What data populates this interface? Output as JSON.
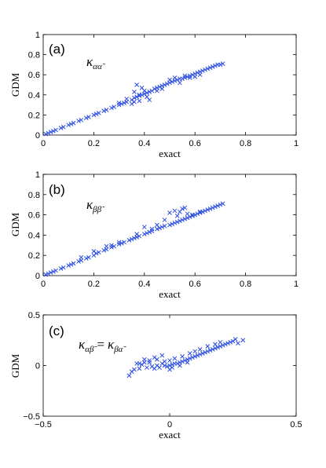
{
  "chart_data": [
    {
      "type": "scatter",
      "panel_label": "(a)",
      "annotation": {
        "main": "κ",
        "subscript": "αα̃"
      },
      "xlabel": "exact",
      "ylabel": "GDM",
      "xlim": [
        0,
        1
      ],
      "ylim": [
        0,
        1
      ],
      "xticks": [
        "0",
        "0.2",
        "0.4",
        "0.6",
        "0.8",
        "1"
      ],
      "yticks": [
        "0",
        "0.2",
        "0.4",
        "0.6",
        "0.8",
        "1"
      ],
      "xtick_values": [
        0,
        0.2,
        0.4,
        0.6,
        0.8,
        1
      ],
      "ytick_values": [
        0,
        0.2,
        0.4,
        0.6,
        0.8,
        1
      ],
      "marker": "x",
      "color": "#2b4de0",
      "points": [
        [
          0.01,
          0.01
        ],
        [
          0.02,
          0.02
        ],
        [
          0.03,
          0.03
        ],
        [
          0.04,
          0.04
        ],
        [
          0.05,
          0.05
        ],
        [
          0.07,
          0.07
        ],
        [
          0.08,
          0.08
        ],
        [
          0.1,
          0.1
        ],
        [
          0.11,
          0.11
        ],
        [
          0.12,
          0.12
        ],
        [
          0.14,
          0.14
        ],
        [
          0.15,
          0.15
        ],
        [
          0.17,
          0.17
        ],
        [
          0.18,
          0.18
        ],
        [
          0.2,
          0.2
        ],
        [
          0.21,
          0.21
        ],
        [
          0.22,
          0.22
        ],
        [
          0.24,
          0.24
        ],
        [
          0.25,
          0.25
        ],
        [
          0.27,
          0.27
        ],
        [
          0.28,
          0.28
        ],
        [
          0.3,
          0.3
        ],
        [
          0.31,
          0.31
        ],
        [
          0.32,
          0.32
        ],
        [
          0.33,
          0.33
        ],
        [
          0.35,
          0.35
        ],
        [
          0.36,
          0.37
        ],
        [
          0.37,
          0.38
        ],
        [
          0.38,
          0.39
        ],
        [
          0.39,
          0.4
        ],
        [
          0.4,
          0.41
        ],
        [
          0.41,
          0.42
        ],
        [
          0.42,
          0.43
        ],
        [
          0.43,
          0.44
        ],
        [
          0.44,
          0.46
        ],
        [
          0.45,
          0.47
        ],
        [
          0.46,
          0.48
        ],
        [
          0.47,
          0.49
        ],
        [
          0.48,
          0.5
        ],
        [
          0.49,
          0.51
        ],
        [
          0.5,
          0.52
        ],
        [
          0.51,
          0.53
        ],
        [
          0.52,
          0.54
        ],
        [
          0.53,
          0.55
        ],
        [
          0.54,
          0.56
        ],
        [
          0.55,
          0.56
        ],
        [
          0.56,
          0.57
        ],
        [
          0.57,
          0.58
        ],
        [
          0.58,
          0.59
        ],
        [
          0.59,
          0.6
        ],
        [
          0.6,
          0.61
        ],
        [
          0.61,
          0.62
        ],
        [
          0.62,
          0.63
        ],
        [
          0.63,
          0.64
        ],
        [
          0.64,
          0.65
        ],
        [
          0.65,
          0.66
        ],
        [
          0.66,
          0.67
        ],
        [
          0.67,
          0.68
        ],
        [
          0.68,
          0.69
        ],
        [
          0.69,
          0.7
        ],
        [
          0.7,
          0.7
        ],
        [
          0.71,
          0.71
        ],
        [
          0.36,
          0.43
        ],
        [
          0.37,
          0.5
        ],
        [
          0.38,
          0.4
        ],
        [
          0.39,
          0.47
        ],
        [
          0.4,
          0.44
        ],
        [
          0.41,
          0.38
        ],
        [
          0.42,
          0.35
        ],
        [
          0.35,
          0.31
        ],
        [
          0.3,
          0.32
        ],
        [
          0.33,
          0.36
        ],
        [
          0.45,
          0.44
        ],
        [
          0.47,
          0.46
        ],
        [
          0.5,
          0.55
        ],
        [
          0.52,
          0.57
        ],
        [
          0.54,
          0.52
        ],
        [
          0.56,
          0.59
        ],
        [
          0.58,
          0.57
        ],
        [
          0.6,
          0.58
        ],
        [
          0.62,
          0.6
        ],
        [
          0.38,
          0.34
        ],
        [
          0.36,
          0.33
        ]
      ]
    },
    {
      "type": "scatter",
      "panel_label": "(b)",
      "annotation": {
        "main": "κ",
        "subscript": "ββ̃"
      },
      "xlabel": "exact",
      "ylabel": "GDM",
      "xlim": [
        0,
        1
      ],
      "ylim": [
        0,
        1
      ],
      "xticks": [
        "0",
        "0.2",
        "0.4",
        "0.6",
        "0.8",
        "1"
      ],
      "yticks": [
        "0",
        "0.2",
        "0.4",
        "0.6",
        "0.8",
        "1"
      ],
      "xtick_values": [
        0,
        0.2,
        0.4,
        0.6,
        0.8,
        1
      ],
      "ytick_values": [
        0,
        0.2,
        0.4,
        0.6,
        0.8,
        1
      ],
      "marker": "x",
      "color": "#2b4de0",
      "points": [
        [
          0.01,
          0.01
        ],
        [
          0.02,
          0.02
        ],
        [
          0.03,
          0.03
        ],
        [
          0.04,
          0.04
        ],
        [
          0.05,
          0.05
        ],
        [
          0.07,
          0.07
        ],
        [
          0.08,
          0.08
        ],
        [
          0.1,
          0.1
        ],
        [
          0.11,
          0.11
        ],
        [
          0.12,
          0.12
        ],
        [
          0.14,
          0.14
        ],
        [
          0.15,
          0.15
        ],
        [
          0.17,
          0.17
        ],
        [
          0.18,
          0.18
        ],
        [
          0.2,
          0.2
        ],
        [
          0.21,
          0.22
        ],
        [
          0.22,
          0.23
        ],
        [
          0.24,
          0.25
        ],
        [
          0.25,
          0.26
        ],
        [
          0.27,
          0.28
        ],
        [
          0.28,
          0.29
        ],
        [
          0.3,
          0.31
        ],
        [
          0.31,
          0.32
        ],
        [
          0.32,
          0.33
        ],
        [
          0.34,
          0.35
        ],
        [
          0.35,
          0.36
        ],
        [
          0.36,
          0.37
        ],
        [
          0.37,
          0.38
        ],
        [
          0.38,
          0.39
        ],
        [
          0.4,
          0.41
        ],
        [
          0.41,
          0.42
        ],
        [
          0.42,
          0.43
        ],
        [
          0.43,
          0.44
        ],
        [
          0.45,
          0.46
        ],
        [
          0.46,
          0.47
        ],
        [
          0.47,
          0.48
        ],
        [
          0.48,
          0.49
        ],
        [
          0.5,
          0.5
        ],
        [
          0.51,
          0.51
        ],
        [
          0.52,
          0.52
        ],
        [
          0.53,
          0.53
        ],
        [
          0.54,
          0.54
        ],
        [
          0.55,
          0.55
        ],
        [
          0.56,
          0.56
        ],
        [
          0.57,
          0.57
        ],
        [
          0.58,
          0.58
        ],
        [
          0.59,
          0.59
        ],
        [
          0.6,
          0.6
        ],
        [
          0.61,
          0.61
        ],
        [
          0.62,
          0.62
        ],
        [
          0.63,
          0.63
        ],
        [
          0.64,
          0.64
        ],
        [
          0.65,
          0.65
        ],
        [
          0.66,
          0.66
        ],
        [
          0.67,
          0.67
        ],
        [
          0.68,
          0.68
        ],
        [
          0.69,
          0.69
        ],
        [
          0.7,
          0.7
        ],
        [
          0.71,
          0.71
        ],
        [
          0.5,
          0.62
        ],
        [
          0.52,
          0.64
        ],
        [
          0.53,
          0.59
        ],
        [
          0.55,
          0.66
        ],
        [
          0.57,
          0.61
        ],
        [
          0.59,
          0.6
        ],
        [
          0.62,
          0.63
        ],
        [
          0.48,
          0.55
        ],
        [
          0.45,
          0.5
        ],
        [
          0.43,
          0.46
        ],
        [
          0.4,
          0.48
        ],
        [
          0.37,
          0.41
        ],
        [
          0.3,
          0.33
        ],
        [
          0.27,
          0.3
        ],
        [
          0.25,
          0.29
        ],
        [
          0.2,
          0.24
        ],
        [
          0.15,
          0.18
        ],
        [
          0.56,
          0.67
        ],
        [
          0.54,
          0.63
        ]
      ]
    },
    {
      "type": "scatter",
      "panel_label": "(c)",
      "annotation": {
        "main": "κ",
        "subscript": "αβ̃",
        "equals": "=",
        "main2": "κ",
        "subscript2": "βα̃"
      },
      "xlabel": "exact",
      "ylabel": "GDM",
      "xlim": [
        -0.5,
        0.5
      ],
      "ylim": [
        -0.5,
        0.5
      ],
      "xticks": [
        "−0.5",
        "0",
        "0.5"
      ],
      "yticks": [
        "−0.5",
        "0",
        "0.5"
      ],
      "xtick_values": [
        -0.5,
        0,
        0.5
      ],
      "ytick_values": [
        -0.5,
        0,
        0.5
      ],
      "marker": "x",
      "color": "#2b4de0",
      "points": [
        [
          -0.16,
          -0.1
        ],
        [
          -0.15,
          -0.06
        ],
        [
          -0.14,
          -0.04
        ],
        [
          -0.13,
          0.02
        ],
        [
          -0.12,
          -0.03
        ],
        [
          -0.11,
          0.01
        ],
        [
          -0.1,
          0.06
        ],
        [
          -0.09,
          -0.02
        ],
        [
          -0.08,
          0.03
        ],
        [
          -0.07,
          -0.01
        ],
        [
          -0.06,
          0.08
        ],
        [
          -0.05,
          0.0
        ],
        [
          -0.04,
          -0.02
        ],
        [
          -0.03,
          0.02
        ],
        [
          -0.02,
          0.0
        ],
        [
          -0.01,
          -0.01
        ],
        [
          0.0,
          0.0
        ],
        [
          0.01,
          0.01
        ],
        [
          0.02,
          0.02
        ],
        [
          0.03,
          0.02
        ],
        [
          0.04,
          0.03
        ],
        [
          0.05,
          0.04
        ],
        [
          0.06,
          0.05
        ],
        [
          0.07,
          0.06
        ],
        [
          0.08,
          0.07
        ],
        [
          0.09,
          0.08
        ],
        [
          0.1,
          0.09
        ],
        [
          0.11,
          0.1
        ],
        [
          0.12,
          0.11
        ],
        [
          0.13,
          0.12
        ],
        [
          0.14,
          0.13
        ],
        [
          0.15,
          0.14
        ],
        [
          0.16,
          0.15
        ],
        [
          0.17,
          0.16
        ],
        [
          0.18,
          0.17
        ],
        [
          0.19,
          0.18
        ],
        [
          0.2,
          0.19
        ],
        [
          0.21,
          0.2
        ],
        [
          0.22,
          0.21
        ],
        [
          0.23,
          0.22
        ],
        [
          0.24,
          0.23
        ],
        [
          0.25,
          0.24
        ],
        [
          0.26,
          0.26
        ],
        [
          0.27,
          0.22
        ],
        [
          0.29,
          0.25
        ],
        [
          -0.1,
          0.03
        ],
        [
          -0.08,
          0.05
        ],
        [
          -0.05,
          0.06
        ],
        [
          -0.03,
          0.1
        ],
        [
          0.0,
          0.05
        ],
        [
          0.02,
          0.07
        ],
        [
          0.05,
          0.09
        ],
        [
          0.08,
          0.12
        ],
        [
          0.1,
          0.14
        ],
        [
          0.12,
          0.16
        ],
        [
          0.15,
          0.19
        ],
        [
          0.18,
          0.21
        ],
        [
          0.2,
          0.23
        ],
        [
          -0.12,
          0.02
        ],
        [
          -0.06,
          -0.03
        ],
        [
          0.01,
          -0.02
        ],
        [
          0.04,
          0.0
        ],
        [
          0.07,
          0.03
        ],
        [
          -0.02,
          0.04
        ],
        [
          0.0,
          -0.04
        ]
      ]
    }
  ]
}
